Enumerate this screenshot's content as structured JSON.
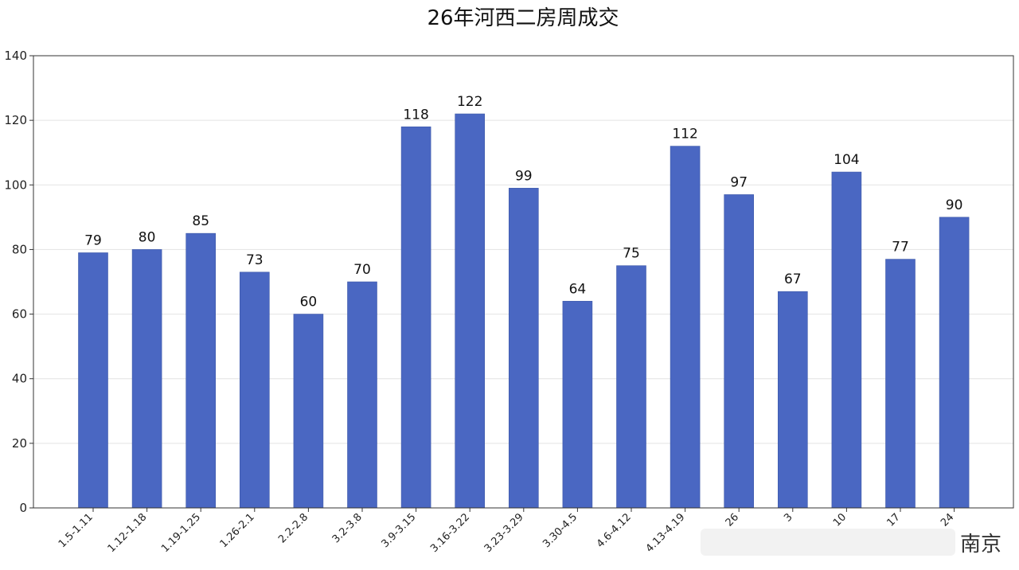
{
  "chart_data": {
    "type": "bar",
    "title": "26年河西二房周成交",
    "xlabel": "",
    "ylabel": "",
    "categories": [
      "1.5-1.11",
      "1.12-1.18",
      "1.19-1.25",
      "1.26-2.1",
      "2.2-2.8",
      "3.2-3.8",
      "3.9-3.15",
      "3.16-3.22",
      "3.23-3.29",
      "3.30-4.5",
      "4.6-4.12",
      "4.13-4.19",
      "26",
      "3",
      "10",
      "17",
      "24"
    ],
    "values": [
      79,
      80,
      85,
      73,
      60,
      70,
      118,
      122,
      99,
      64,
      75,
      112,
      97,
      67,
      104,
      77,
      90
    ],
    "ylim": [
      0,
      140
    ],
    "yticks": [
      0,
      20,
      40,
      60,
      80,
      100,
      120,
      140
    ],
    "grid": true,
    "bar_color": "#4a67c2"
  },
  "watermark": {
    "text": "南京"
  }
}
